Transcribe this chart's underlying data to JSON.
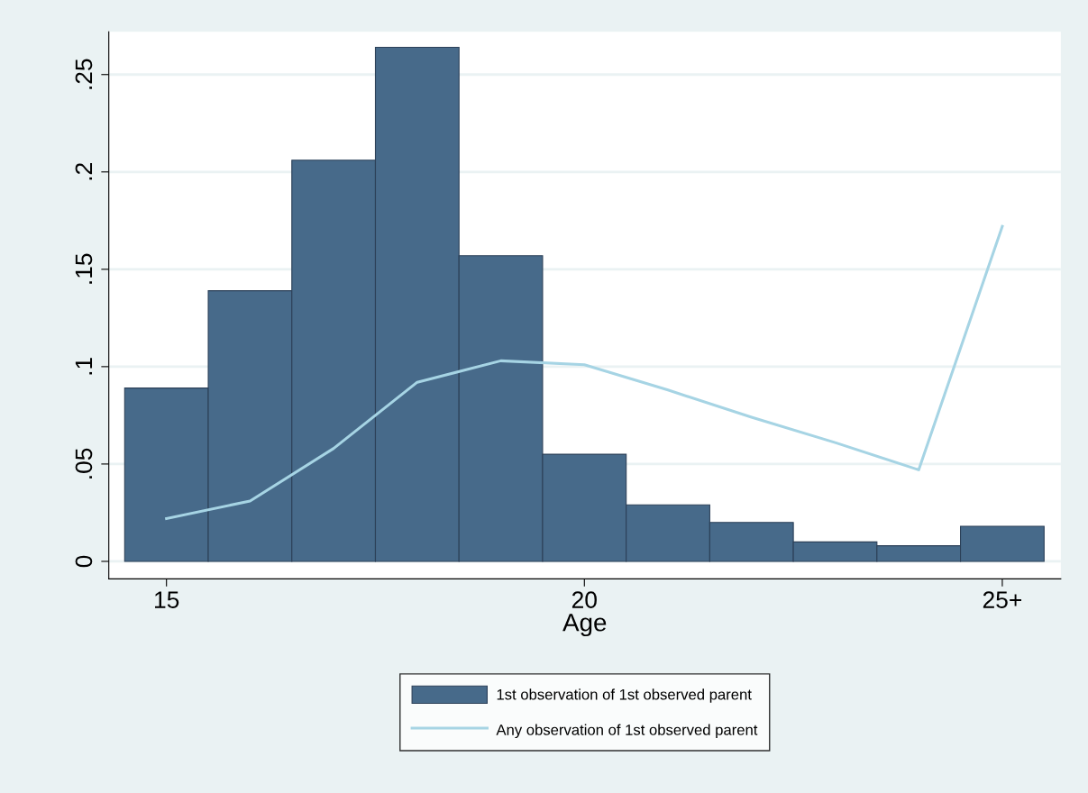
{
  "chart_data": {
    "type": "histogram",
    "xlabel": "Age",
    "series": [
      {
        "name": "1st observation of 1st observed parent",
        "color": "#476a8a",
        "bins": [
          14.5,
          15.5,
          16.5,
          17.5,
          18.5,
          19.5,
          20.5,
          21.5,
          22.5,
          23.5,
          24.5,
          25.5
        ],
        "values": [
          0.089,
          0.139,
          0.206,
          0.264,
          0.157,
          0.055,
          0.029,
          0.02,
          0.01,
          0.008,
          0.018
        ]
      },
      {
        "type": "line",
        "name": "Any observation of 1st observed parent",
        "color": "#a6d4e4",
        "x": [
          15,
          16,
          17,
          18,
          19,
          20,
          21,
          22,
          23,
          24,
          25
        ],
        "values": [
          0.022,
          0.031,
          0.058,
          0.092,
          0.103,
          0.101,
          0.088,
          0.074,
          0.061,
          0.047,
          0.172
        ]
      }
    ],
    "xlim": [
      14.31,
      25.7
    ],
    "xticks": [
      15,
      20,
      {
        "value": 25,
        "label": "25+"
      }
    ],
    "ylim": [
      -0.009,
      0.272
    ],
    "yticks": [
      0,
      {
        "value": 0.05,
        "label": ".05"
      },
      {
        "value": 0.1,
        "label": ".1"
      },
      {
        "value": 0.15,
        "label": ".15"
      },
      {
        "value": 0.2,
        "label": ".2"
      },
      {
        "value": 0.25,
        "label": ".25"
      }
    ],
    "grid": "y",
    "legend": "bottom"
  }
}
